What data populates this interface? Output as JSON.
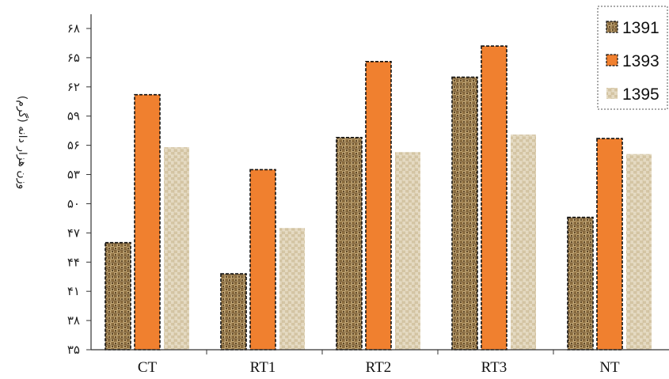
{
  "chart_data": {
    "type": "bar",
    "ylabel": "وزن هزار دانه (گرم)",
    "xlabel": "",
    "ylim": [
      35,
      68
    ],
    "y_ticks": [
      35,
      38,
      41,
      44,
      47,
      50,
      53,
      56,
      59,
      62,
      65,
      68
    ],
    "y_tick_labels": [
      "۳۵",
      "۳۸",
      "۴۱",
      "۴۴",
      "۴۷",
      "۵۰",
      "۵۳",
      "۵۶",
      "۵۹",
      "۶۲",
      "۶۵",
      "۶۸"
    ],
    "categories": [
      "CT",
      "RT1",
      "RT2",
      "RT3",
      "NT"
    ],
    "series": [
      {
        "name": "1391",
        "values": [
          46.0,
          42.8,
          56.8,
          63.0,
          48.6
        ],
        "color": "#9c7f4e",
        "pattern": "burlap-dark",
        "dashed_outline": true
      },
      {
        "name": "1393",
        "values": [
          61.2,
          53.5,
          64.6,
          66.2,
          56.7
        ],
        "color": "#f0802f",
        "pattern": "solid",
        "dashed_outline": true
      },
      {
        "name": "1395",
        "values": [
          55.8,
          47.5,
          55.3,
          57.1,
          55.1
        ],
        "color": "#e2d6bc",
        "pattern": "burlap-light",
        "dashed_outline": false
      }
    ],
    "legend_position": "top-right",
    "grid": false
  }
}
